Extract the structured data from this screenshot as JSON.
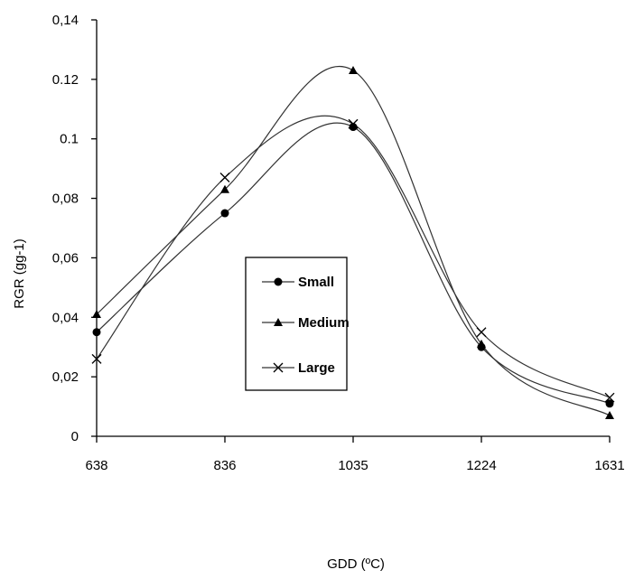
{
  "chart_data": {
    "type": "line",
    "title": "",
    "xlabel": "GDD (ºC)",
    "ylabel": "RGR (gg-1)",
    "categories": [
      "638",
      "836",
      "1035",
      "1224",
      "1631"
    ],
    "ylim": [
      0,
      0.14
    ],
    "yticks": [
      "0",
      "0,02",
      "0,04",
      "0,06",
      "0,08",
      "0.1",
      "0.12",
      "0,14"
    ],
    "yticks_values": [
      0,
      0.02,
      0.04,
      0.06,
      0.08,
      0.1,
      0.12,
      0.14
    ],
    "grid": false,
    "legend_position": "center",
    "series": [
      {
        "name": "Small",
        "marker": "circle",
        "values": [
          0.035,
          0.075,
          0.104,
          0.03,
          0.011
        ]
      },
      {
        "name": "Medium",
        "marker": "triangle",
        "values": [
          0.041,
          0.083,
          0.123,
          0.031,
          0.007
        ]
      },
      {
        "name": "Large",
        "marker": "x",
        "values": [
          0.026,
          0.087,
          0.105,
          0.035,
          0.013
        ]
      }
    ],
    "colors": {
      "line": "#333333",
      "marker": "#000000",
      "axis": "#000000"
    }
  }
}
